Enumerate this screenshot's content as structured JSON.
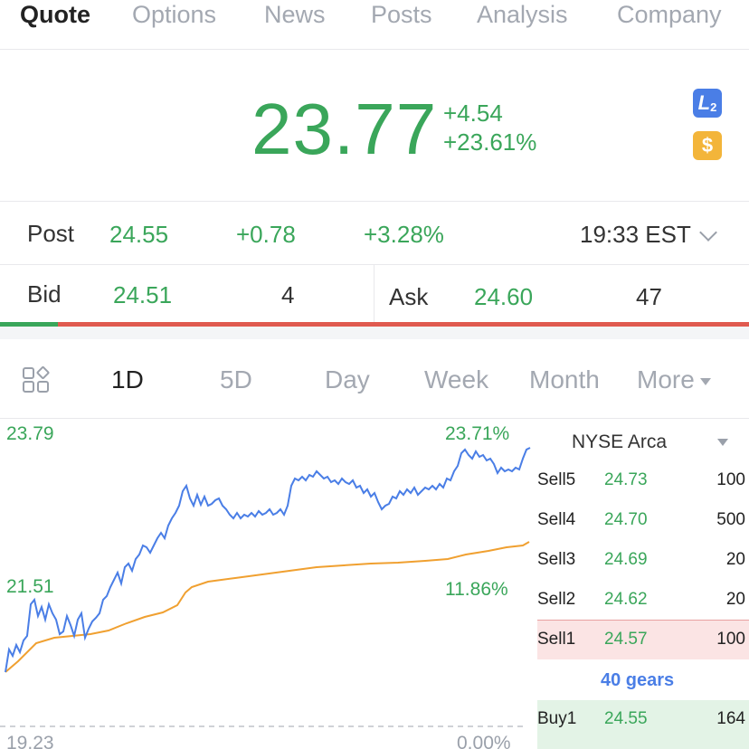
{
  "tabs": [
    {
      "label": "Quote",
      "active": true
    },
    {
      "label": "Options",
      "active": false
    },
    {
      "label": "News",
      "active": false
    },
    {
      "label": "Posts",
      "active": false
    },
    {
      "label": "Analysis",
      "active": false
    },
    {
      "label": "Company",
      "active": false
    }
  ],
  "quote": {
    "price": "23.77",
    "change": "+4.54",
    "change_pct": "+23.61%",
    "badge_l2": "L",
    "badge_l2_sub": "2",
    "badge_usd": "$"
  },
  "post": {
    "label": "Post",
    "price": "24.55",
    "change": "+0.78",
    "change_pct": "+3.28%",
    "time": "19:33 EST"
  },
  "bid": {
    "label": "Bid",
    "price": "24.51",
    "size": "4"
  },
  "ask": {
    "label": "Ask",
    "price": "24.60",
    "size": "47"
  },
  "periods": [
    {
      "label": "1D",
      "active": true
    },
    {
      "label": "5D",
      "active": false
    },
    {
      "label": "Day",
      "active": false
    },
    {
      "label": "Week",
      "active": false
    },
    {
      "label": "Month",
      "active": false
    },
    {
      "label": "More",
      "active": false
    }
  ],
  "chart": {
    "y_high": "23.79",
    "y_mid": "21.51",
    "y_low": "19.23",
    "pct_high": "23.71%",
    "pct_mid": "11.86%",
    "pct_low": "0.00%",
    "colors": {
      "price_line": "#4a7ee6",
      "avg_line": "#f0a030"
    }
  },
  "order_book": {
    "exchange": "NYSE Arca",
    "sells": [
      {
        "label": "Sell5",
        "price": "24.73",
        "qty": "100"
      },
      {
        "label": "Sell4",
        "price": "24.70",
        "qty": "500"
      },
      {
        "label": "Sell3",
        "price": "24.69",
        "qty": "20"
      },
      {
        "label": "Sell2",
        "price": "24.62",
        "qty": "20"
      },
      {
        "label": "Sell1",
        "price": "24.57",
        "qty": "100"
      }
    ],
    "gears": "40 gears",
    "buys": [
      {
        "label": "Buy1",
        "price": "24.55",
        "qty": "164"
      }
    ]
  }
}
